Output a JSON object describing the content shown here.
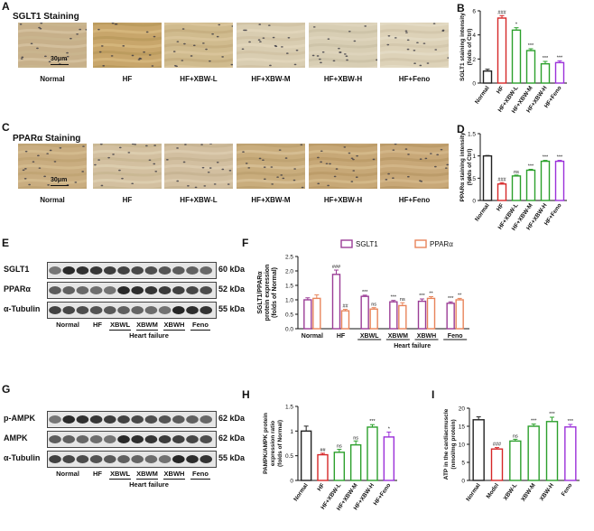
{
  "panels": {
    "A": {
      "letter": "A",
      "title": "SGLT1 Staining",
      "scale": "30μm",
      "groups": [
        "Normal",
        "HF",
        "HF+XBW-L",
        "HF+XBW-M",
        "HF+XBW-H",
        "HF+Feno"
      ]
    },
    "C": {
      "letter": "C",
      "title": "PPARα Staining",
      "scale": "30μm",
      "groups": [
        "Normal",
        "HF",
        "HF+XBW-L",
        "HF+XBW-M",
        "HF+XBW-H",
        "HF+Feno"
      ]
    },
    "E": {
      "letter": "E",
      "rows": [
        "SGLT1",
        "PPARα",
        "α-Tubulin"
      ],
      "kda": [
        "60 kDa",
        "52 kDa",
        "55 kDa"
      ],
      "groups": [
        "Normal",
        "HF",
        "XBWL",
        "XBWM",
        "XBWH",
        "Feno"
      ],
      "hf_label": "Heart failure"
    },
    "G": {
      "letter": "G",
      "rows": [
        "p-AMPK",
        "AMPK",
        "α-Tubulin"
      ],
      "kda": [
        "62 kDa",
        "62 kDa",
        "55 kDa"
      ],
      "groups": [
        "Normal",
        "HF",
        "XBWL",
        "XBWM",
        "XBWH",
        "Feno"
      ],
      "hf_label": "Heart failure"
    },
    "B": {
      "letter": "B"
    },
    "D": {
      "letter": "D"
    },
    "F": {
      "letter": "F"
    },
    "H": {
      "letter": "H"
    },
    "I": {
      "letter": "I"
    }
  },
  "chart_data": [
    {
      "id": "B",
      "type": "bar",
      "ylabel": "SGLT1 staining intensity\n(folds of Ctrl)",
      "categories": [
        "Normal",
        "HF",
        "HF+XBW-L",
        "HF+XBW-M",
        "HF+XBW-H",
        "HF+Feno"
      ],
      "values": [
        1.0,
        5.4,
        4.4,
        2.7,
        1.6,
        1.7
      ],
      "errors": [
        0.15,
        0.2,
        0.2,
        0.15,
        0.2,
        0.15
      ],
      "sig": [
        "",
        "###",
        "*",
        "***",
        "***",
        "***"
      ],
      "colors": [
        "#222222",
        "#d62728",
        "#2ca02c",
        "#2ca02c",
        "#2ca02c",
        "#9b30d9"
      ],
      "ylim": [
        0,
        6
      ],
      "yticks": [
        0,
        2,
        4,
        6
      ]
    },
    {
      "id": "D",
      "type": "bar",
      "ylabel": "PPARα staining intensity\n(folds of Ctrl)",
      "categories": [
        "Normal",
        "HF",
        "HF+XBW-L",
        "HF+XBW-M",
        "HF+XBW-H",
        "HF+Feno"
      ],
      "values": [
        1.0,
        0.37,
        0.55,
        0.68,
        0.88,
        0.88
      ],
      "errors": [
        0.01,
        0.03,
        0.02,
        0.02,
        0.02,
        0.02
      ],
      "sig": [
        "",
        "###",
        "ns",
        "***",
        "***",
        "***"
      ],
      "colors": [
        "#222222",
        "#d62728",
        "#2ca02c",
        "#2ca02c",
        "#2ca02c",
        "#9b30d9"
      ],
      "ylim": [
        0,
        1.5
      ],
      "yticks": [
        0.0,
        0.5,
        1.0,
        1.5
      ]
    },
    {
      "id": "F",
      "type": "bar",
      "ylabel": "SGLT1/PPARα\nprotein expression\n(folds of Normal)",
      "categories": [
        "Normal",
        "HF",
        "XBWL",
        "XBWM",
        "XBWH",
        "Feno"
      ],
      "series": [
        {
          "name": "SGLT1",
          "color": "#9b3d96",
          "values": [
            1.0,
            1.88,
            1.12,
            0.93,
            0.95,
            0.88
          ],
          "errors": [
            0.07,
            0.15,
            0.04,
            0.05,
            0.08,
            0.05
          ],
          "sig": [
            "",
            "###",
            "***",
            "***",
            "***",
            "***"
          ]
        },
        {
          "name": "PPARα",
          "color": "#e8845a",
          "values": [
            1.05,
            0.62,
            0.68,
            0.8,
            1.05,
            1.0
          ],
          "errors": [
            0.12,
            0.05,
            0.05,
            0.1,
            0.06,
            0.05
          ],
          "sig": [
            "",
            "##",
            "ns",
            "ns",
            "**",
            "**"
          ]
        }
      ],
      "ylim": [
        0,
        2.5
      ],
      "yticks": [
        0.0,
        0.5,
        1.0,
        1.5,
        2.0,
        2.5
      ],
      "hf_label": "Heart failure"
    },
    {
      "id": "H",
      "type": "bar",
      "ylabel": "PAMPK/AMPK protein\nexpression ratio\n(folds of Normal)",
      "categories": [
        "Normal",
        "HF",
        "HF+XBW-L",
        "HF+XBW-M",
        "HF+XBW-H",
        "HF+Feno"
      ],
      "values": [
        1.0,
        0.52,
        0.57,
        0.72,
        1.08,
        0.88
      ],
      "errors": [
        0.1,
        0.03,
        0.06,
        0.08,
        0.05,
        0.1
      ],
      "sig": [
        "",
        "##",
        "ns",
        "ns",
        "***",
        "*"
      ],
      "colors": [
        "#222222",
        "#d62728",
        "#2ca02c",
        "#2ca02c",
        "#2ca02c",
        "#9b30d9"
      ],
      "ylim": [
        0,
        1.5
      ],
      "yticks": [
        0.0,
        0.5,
        1.0,
        1.5
      ]
    },
    {
      "id": "I",
      "type": "bar",
      "ylabel": "ATP in the cardiacmuscle\n(nmol/mg protein)",
      "categories": [
        "Normal",
        "Model",
        "XBW-L",
        "XBW-M",
        "XBW-H",
        "Feno"
      ],
      "values": [
        16.8,
        8.7,
        10.9,
        15.0,
        16.3,
        14.8
      ],
      "errors": [
        0.8,
        0.4,
        0.5,
        0.6,
        1.2,
        0.7
      ],
      "sig": [
        "",
        "###",
        "ns",
        "***",
        "***",
        "***"
      ],
      "colors": [
        "#222222",
        "#d62728",
        "#2ca02c",
        "#2ca02c",
        "#2ca02c",
        "#9b30d9"
      ],
      "ylim": [
        0,
        20
      ],
      "yticks": [
        0,
        5,
        10,
        15,
        20
      ]
    }
  ]
}
